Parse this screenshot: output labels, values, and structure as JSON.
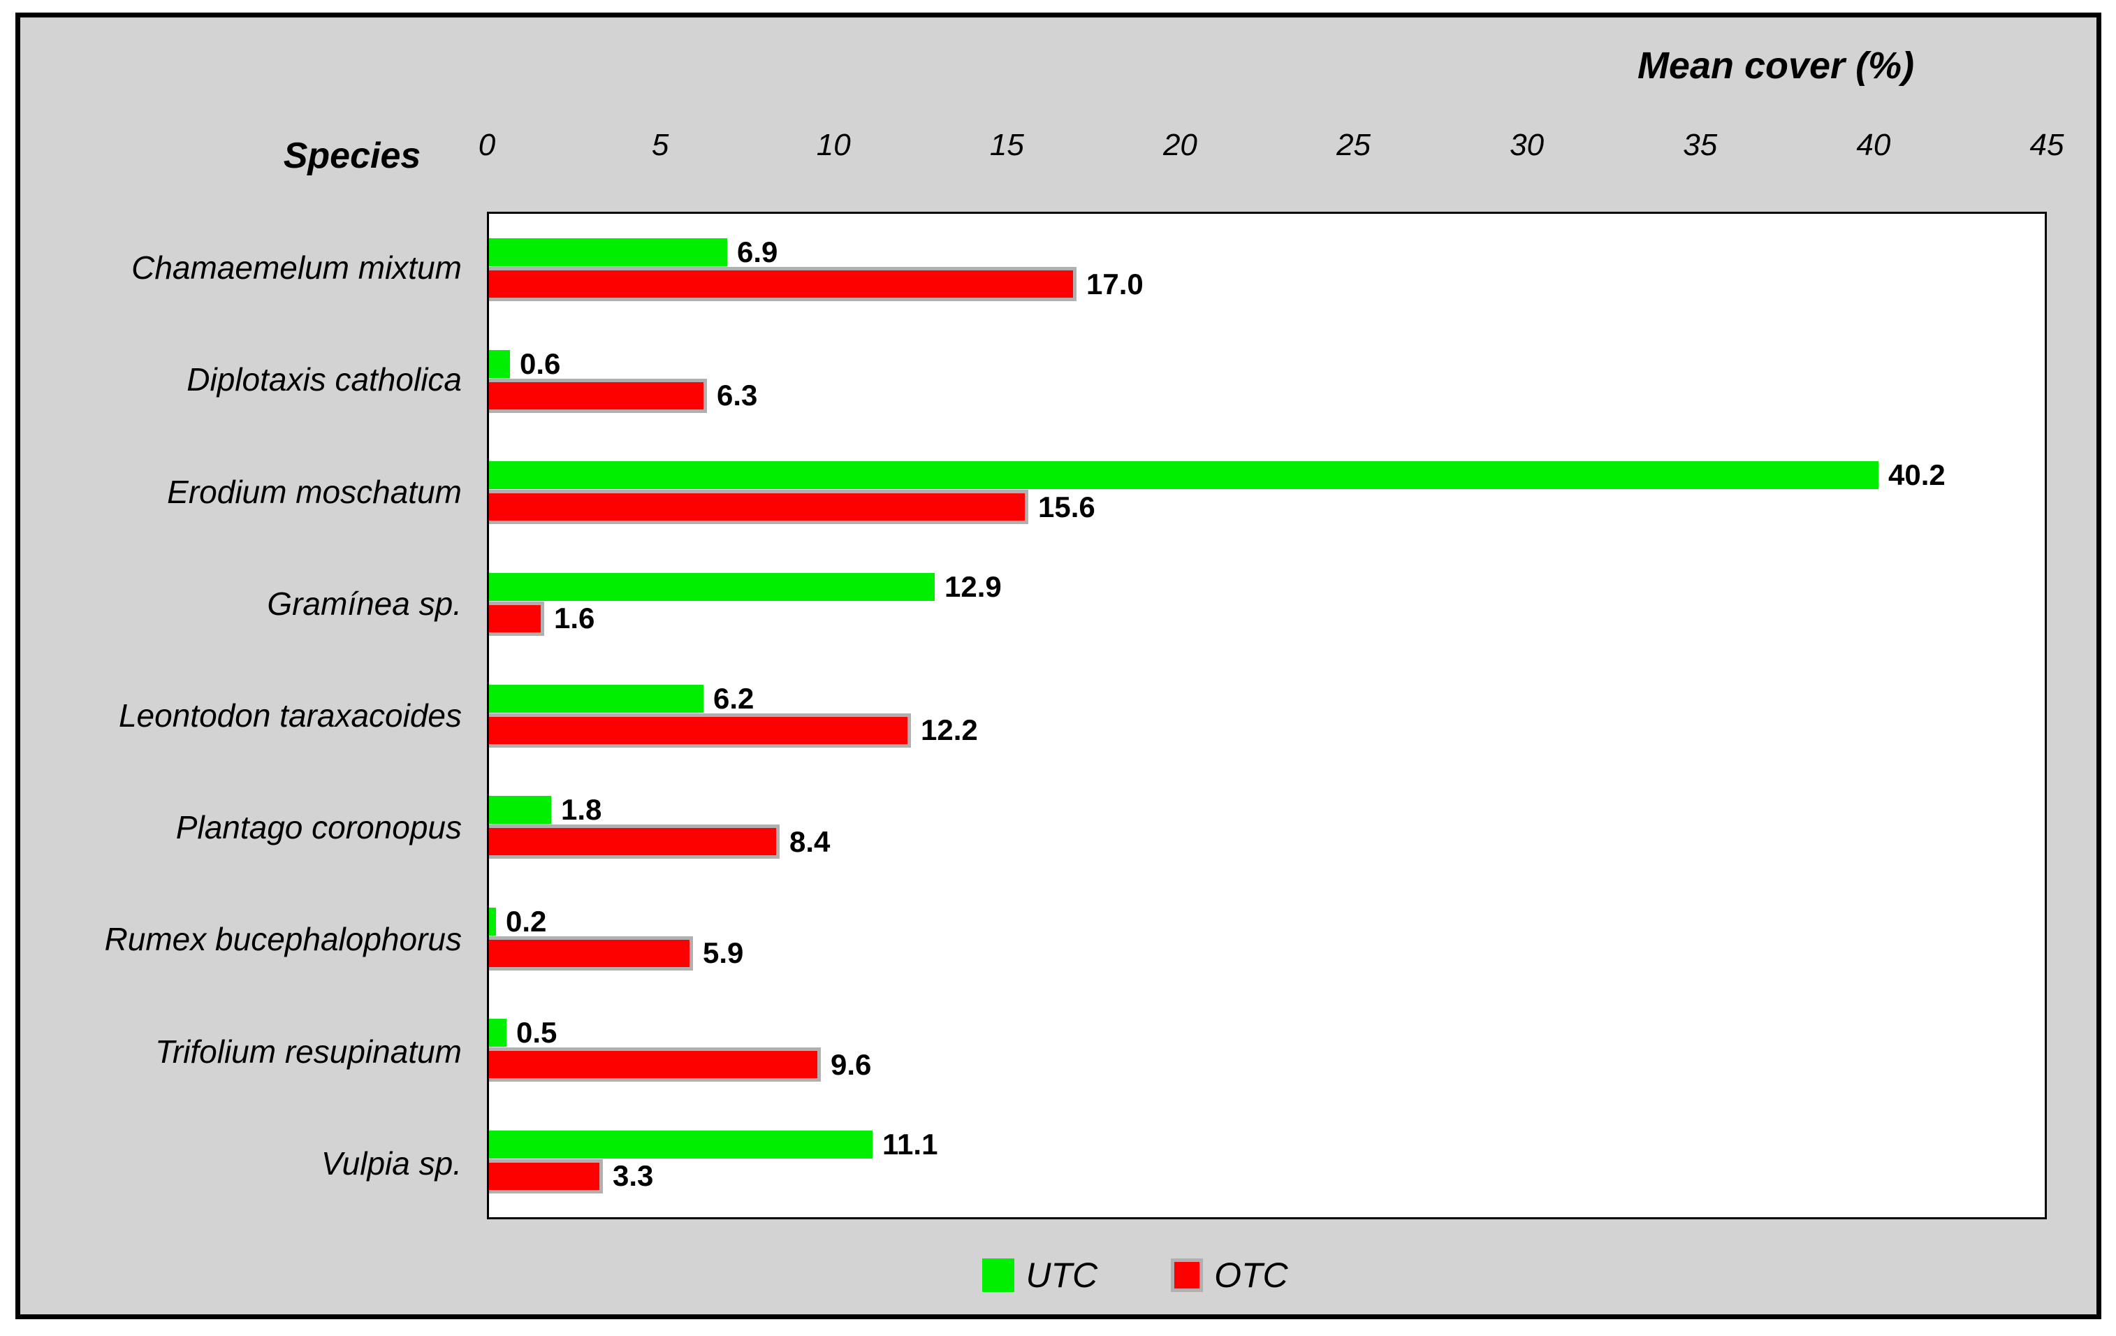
{
  "figure": {
    "x_axis_title": "Mean cover (%)",
    "y_axis_title": "Species",
    "colors": {
      "utc_green": "#00ee00",
      "otc_red": "#fd0000",
      "otc_bar_border": "#b0b0b0",
      "panel_background": "#d3d3d3",
      "plot_background": "#ffffff",
      "frame_border": "#000000"
    },
    "legend": [
      {
        "label": "UTC",
        "series": "utc"
      },
      {
        "label": "OTC",
        "series": "otc"
      }
    ]
  },
  "chart_data": {
    "type": "bar",
    "orientation": "horizontal",
    "title": "Mean cover (%)",
    "xlabel": "Mean cover (%)",
    "ylabel": "Species",
    "xlim": [
      0,
      45
    ],
    "xticks": [
      0,
      5,
      10,
      15,
      20,
      25,
      30,
      35,
      40,
      45
    ],
    "grid": false,
    "legend_position": "bottom",
    "value_label_format": "one_decimal",
    "categories": [
      "Chamaemelum mixtum",
      "Diplotaxis catholica",
      "Erodium moschatum",
      "Gramínea sp.",
      "Leontodon taraxacoides",
      "Plantago coronopus",
      "Rumex bucephalophorus",
      "Trifolium resupinatum",
      "Vulpia sp."
    ],
    "series": [
      {
        "name": "UTC",
        "color": "#00ee00",
        "values": [
          6.9,
          0.6,
          40.2,
          12.9,
          6.2,
          1.8,
          0.2,
          0.5,
          11.1
        ]
      },
      {
        "name": "OTC",
        "color": "#fd0000",
        "values": [
          17.0,
          6.3,
          15.6,
          1.6,
          12.2,
          8.4,
          5.9,
          9.6,
          3.3
        ]
      }
    ]
  }
}
